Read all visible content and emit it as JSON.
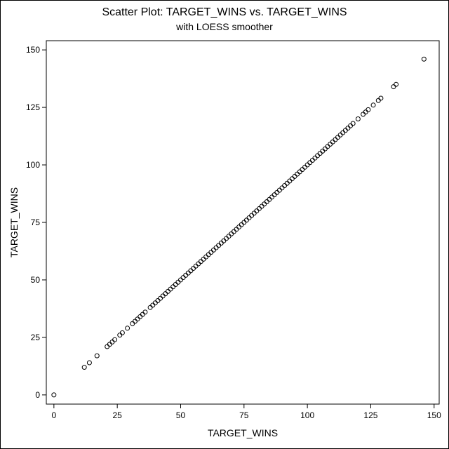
{
  "chart_data": {
    "type": "scatter",
    "title": "Scatter Plot: TARGET_WINS vs. TARGET_WINS",
    "subtitle": "with LOESS smoother",
    "xlabel": "TARGET_WINS",
    "ylabel": "TARGET_WINS",
    "xlim": [
      -3,
      152
    ],
    "ylim": [
      -4,
      154
    ],
    "xticks": [
      0,
      25,
      50,
      75,
      100,
      125,
      150
    ],
    "yticks": [
      0,
      25,
      50,
      75,
      100,
      125,
      150
    ],
    "grid": false,
    "marker": "open-circle",
    "series": [
      {
        "x": [
          0,
          12,
          14,
          17,
          21,
          22,
          23,
          24,
          26,
          27,
          29,
          31,
          32,
          33,
          34,
          35,
          36,
          38,
          39,
          40,
          41,
          42,
          43,
          44,
          45,
          46,
          47,
          48,
          49,
          50,
          51,
          52,
          53,
          54,
          55,
          56,
          57,
          58,
          59,
          60,
          61,
          62,
          63,
          64,
          65,
          66,
          67,
          68,
          69,
          70,
          71,
          72,
          73,
          74,
          75,
          76,
          77,
          78,
          79,
          80,
          81,
          82,
          83,
          84,
          85,
          86,
          87,
          88,
          89,
          90,
          91,
          92,
          93,
          94,
          95,
          96,
          97,
          98,
          99,
          100,
          101,
          102,
          103,
          104,
          105,
          106,
          107,
          108,
          109,
          110,
          111,
          112,
          113,
          114,
          115,
          116,
          117,
          118,
          120,
          122,
          123,
          124,
          126,
          128,
          129,
          134,
          135,
          146
        ],
        "y": [
          0,
          12,
          14,
          17,
          21,
          22,
          23,
          24,
          26,
          27,
          29,
          31,
          32,
          33,
          34,
          35,
          36,
          38,
          39,
          40,
          41,
          42,
          43,
          44,
          45,
          46,
          47,
          48,
          49,
          50,
          51,
          52,
          53,
          54,
          55,
          56,
          57,
          58,
          59,
          60,
          61,
          62,
          63,
          64,
          65,
          66,
          67,
          68,
          69,
          70,
          71,
          72,
          73,
          74,
          75,
          76,
          77,
          78,
          79,
          80,
          81,
          82,
          83,
          84,
          85,
          86,
          87,
          88,
          89,
          90,
          91,
          92,
          93,
          94,
          95,
          96,
          97,
          98,
          99,
          100,
          101,
          102,
          103,
          104,
          105,
          106,
          107,
          108,
          109,
          110,
          111,
          112,
          113,
          114,
          115,
          116,
          117,
          118,
          120,
          122,
          123,
          124,
          126,
          128,
          129,
          134,
          135,
          146
        ]
      }
    ]
  }
}
